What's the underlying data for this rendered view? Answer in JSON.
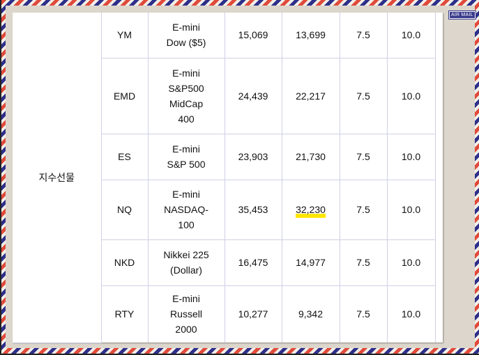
{
  "stamp": "AIR MAIL",
  "group": "지수선물",
  "rows": [
    {
      "code": "YM",
      "name": [
        "E-mini",
        "Dow ($5)"
      ],
      "v1": "15,069",
      "v2": "13,699",
      "v3": "7.5",
      "v4": "10.0"
    },
    {
      "code": "EMD",
      "name": [
        "E-mini",
        "S&P500",
        "MidCap",
        "400"
      ],
      "v1": "24,439",
      "v2": "22,217",
      "v3": "7.5",
      "v4": "10.0"
    },
    {
      "code": "ES",
      "name": [
        "E-mini",
        "S&P 500"
      ],
      "v1": "23,903",
      "v2": "21,730",
      "v3": "7.5",
      "v4": "10.0"
    },
    {
      "code": "NQ",
      "name": [
        "E-mini",
        "NASDAQ-",
        "100"
      ],
      "v1": "35,453",
      "v2": "32,230",
      "v3": "7.5",
      "v4": "10.0",
      "highlight": "v2"
    },
    {
      "code": "NKD",
      "name": [
        "Nikkei 225",
        "(Dollar)"
      ],
      "v1": "16,475",
      "v2": "14,977",
      "v3": "7.5",
      "v4": "10.0"
    },
    {
      "code": "RTY",
      "name": [
        "E-mini",
        "Russell",
        "2000"
      ],
      "v1": "10,277",
      "v2": "9,342",
      "v3": "7.5",
      "v4": "10.0"
    }
  ],
  "colors": {
    "highlight": "#ffe600",
    "stripe_red": "#e04a3a",
    "stripe_blue": "#2e2f8a"
  }
}
